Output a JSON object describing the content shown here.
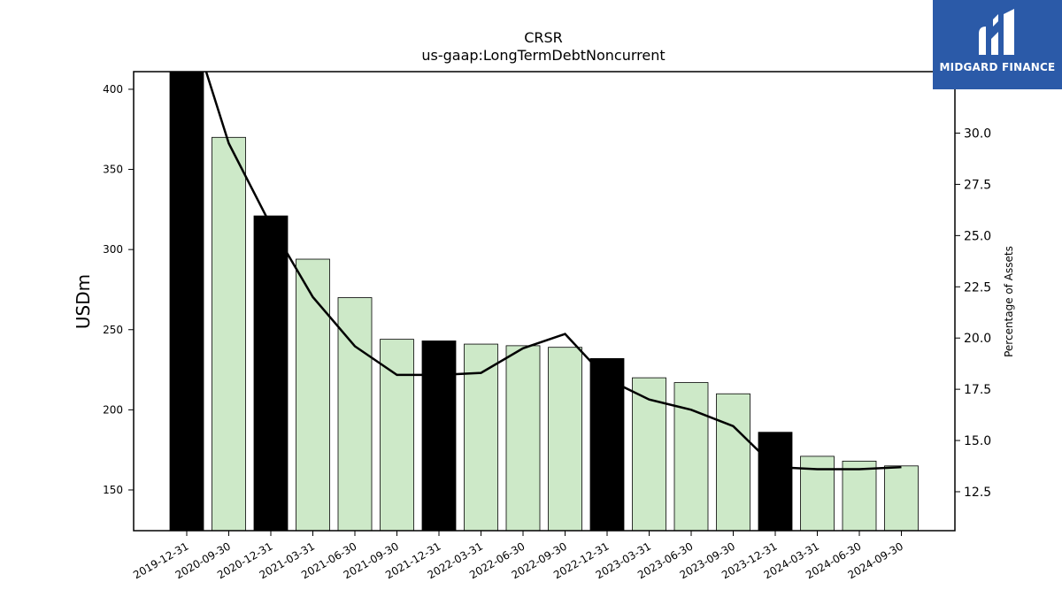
{
  "chart_data": {
    "type": "bar",
    "title": "CRSR",
    "subtitle": "us-gaap:LongTermDebtNoncurrent",
    "ylabel": "USDm",
    "y2label": "Percentage of Assets",
    "ylim": [
      124.6,
      411
    ],
    "y2lim": [
      10.6,
      33.0
    ],
    "yticks": [
      150,
      200,
      250,
      300,
      350,
      400
    ],
    "y2ticks": [
      "12.5",
      "15.0",
      "17.5",
      "20.0",
      "22.5",
      "25.0",
      "27.5",
      "30.0"
    ],
    "categories": [
      "2019-12-31",
      "2020-09-30",
      "2020-12-31",
      "2021-03-31",
      "2021-06-30",
      "2021-09-30",
      "2021-12-31",
      "2022-03-31",
      "2022-06-30",
      "2022-09-30",
      "2022-12-31",
      "2023-03-31",
      "2023-06-30",
      "2023-09-30",
      "2023-12-31",
      "2024-03-31",
      "2024-06-30",
      "2024-09-30"
    ],
    "values": [
      411,
      370,
      321,
      294,
      270,
      244,
      243,
      241,
      240,
      239,
      232,
      220,
      217,
      210,
      186,
      171,
      168,
      165
    ],
    "year_end": [
      true,
      false,
      true,
      false,
      false,
      false,
      true,
      false,
      false,
      false,
      true,
      false,
      false,
      false,
      true,
      false,
      false,
      false
    ],
    "percent_of_assets": [
      36.0,
      29.5,
      25.5,
      22.0,
      19.6,
      18.2,
      18.2,
      18.3,
      19.5,
      20.2,
      18.0,
      17.0,
      16.5,
      15.7,
      13.7,
      13.6,
      13.6,
      13.7
    ],
    "colors": {
      "year_end_bar": "#000000",
      "quarter_bar": "#cde9c8",
      "line": "#000000"
    }
  },
  "logo": {
    "text": "MIDGARD FINANCE",
    "color": "#2b5aa8"
  }
}
